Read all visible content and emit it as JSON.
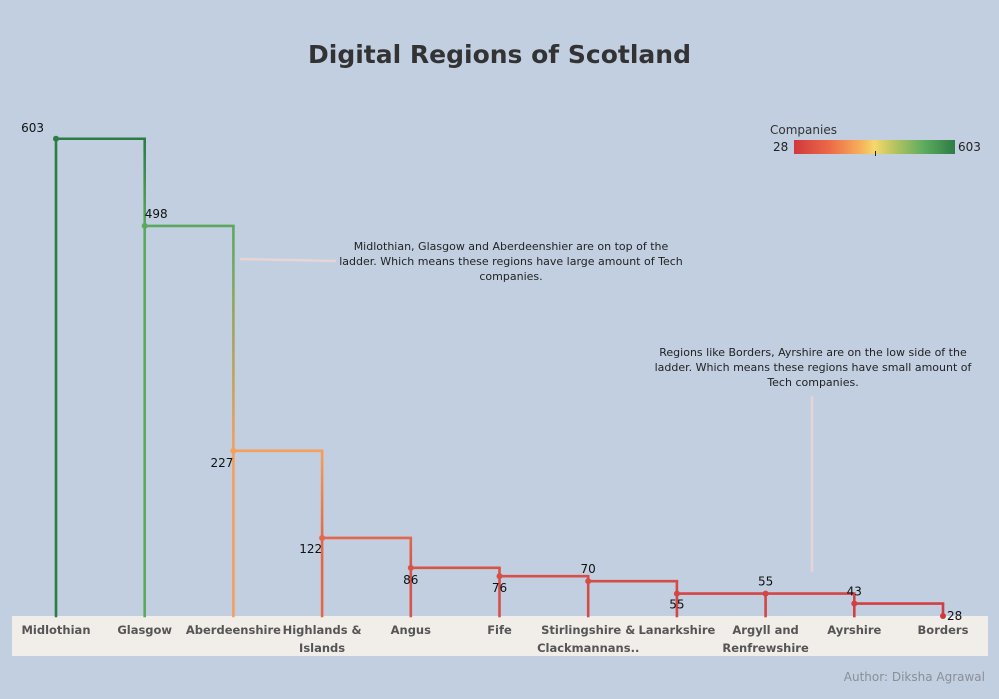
{
  "chart_data": {
    "type": "line",
    "title": "Digital Regions of Scotland",
    "categories": [
      "Midlothian",
      "Glasgow",
      "Aberdeenshire",
      "Highlands & Islands",
      "Angus",
      "Fife",
      "Stirlingshire & Clackmannans..",
      "Lanarkshire",
      "Argyll and Renfrewshire",
      "Ayrshire",
      "Borders"
    ],
    "category_lines": [
      [
        "Midlothian"
      ],
      [
        "Glasgow"
      ],
      [
        "Aberdeenshire"
      ],
      [
        "Highlands &",
        "Islands"
      ],
      [
        "Angus"
      ],
      [
        "Fife"
      ],
      [
        "Stirlingshire &",
        "Clackmannans.."
      ],
      [
        "Lanarkshire"
      ],
      [
        "Argyll and",
        "Renfrewshire"
      ],
      [
        "Ayrshire"
      ],
      [
        "Borders"
      ]
    ],
    "values": [
      603,
      498,
      227,
      122,
      86,
      76,
      70,
      55,
      55,
      43,
      28
    ],
    "line_style": "step",
    "color_legend": {
      "title": "Companies",
      "min": 28,
      "max": 603,
      "min_label": "28",
      "max_label": "603",
      "colors": [
        "#d0383e",
        "#f7b25c",
        "#2c7c45"
      ]
    },
    "annotations": [
      "Midlothian, Glasgow and Aberdeenshier are on top of the ladder. Which means these regions have large amount of Tech companies.",
      "Regions like Borders, Ayrshire are on the low side of the ladder. Which means these regions have small amount of Tech companies."
    ]
  },
  "author": "Author: Diksha Agrawal"
}
